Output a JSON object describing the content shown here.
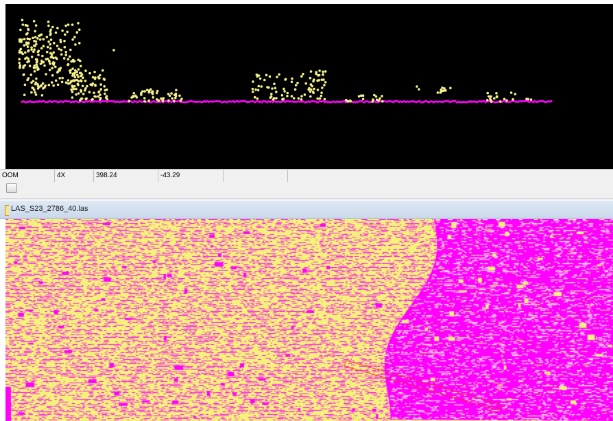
{
  "status_bar": {
    "mode": "OOM",
    "zoom": "4X",
    "coord_x": "398.24",
    "coord_y": "-43.29"
  },
  "document": {
    "title": "LAS_S23_2786_40.las"
  },
  "colors": {
    "profile_background": "#000000",
    "vegetation_points": "#f5f08a",
    "ground_points": "#ff00ff",
    "map_yellow": "#f4f27a",
    "map_magenta": "#ff00ff",
    "selection_line": "#e8341c"
  },
  "icons": {
    "toolbar_button": "square-button-icon",
    "document": "layer-file-icon"
  }
}
